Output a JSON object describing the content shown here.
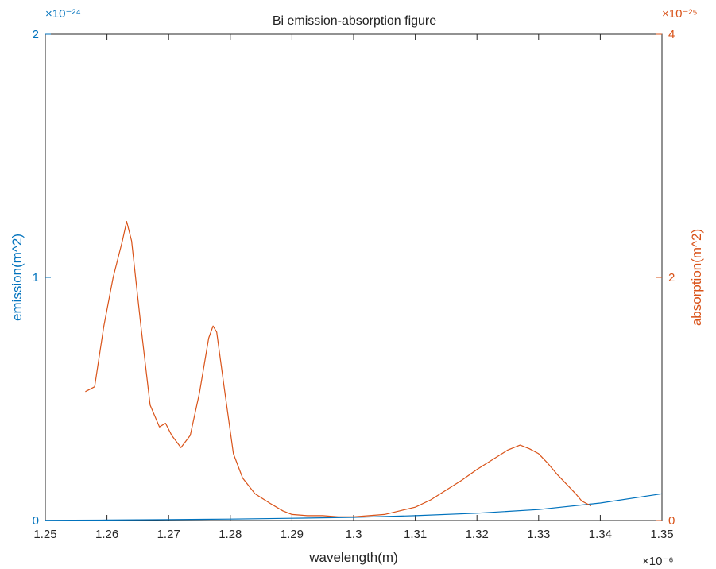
{
  "chart_data": {
    "type": "line",
    "title": "Bi emission-absorption figure",
    "xlabel": "wavelength(m)",
    "ylabel_left": "emission(m^2)",
    "ylabel_right": "absorption(m^2)",
    "x_exponent": "×10⁻⁶",
    "y_left_exponent": "×10⁻²⁴",
    "y_right_exponent": "×10⁻²⁵",
    "xlim": [
      1.25,
      1.35
    ],
    "ylim_left": [
      0,
      2
    ],
    "ylim_right": [
      0,
      4
    ],
    "x_ticks": [
      "1.25",
      "1.26",
      "1.27",
      "1.28",
      "1.29",
      "1.3",
      "1.31",
      "1.32",
      "1.33",
      "1.34",
      "1.35"
    ],
    "y_left_ticks": [
      "0",
      "1",
      "2"
    ],
    "y_right_ticks": [
      "0",
      "2",
      "4"
    ],
    "grid": false,
    "colors": {
      "emission": "#0072bd",
      "absorption": "#d95319"
    },
    "series": [
      {
        "axis": "left",
        "x": [
          1.25,
          1.26,
          1.27,
          1.28,
          1.29,
          1.3,
          1.31,
          1.32,
          1.33,
          1.34,
          1.35
        ],
        "y": [
          0.001,
          0.002,
          0.004,
          0.006,
          0.009,
          0.013,
          0.02,
          0.03,
          0.045,
          0.072,
          0.11
        ]
      },
      {
        "axis": "right",
        "x": [
          1.2565,
          1.258,
          1.2595,
          1.261,
          1.2625,
          1.2632,
          1.264,
          1.2655,
          1.267,
          1.2685,
          1.2695,
          1.2705,
          1.272,
          1.2735,
          1.275,
          1.2765,
          1.2772,
          1.2778,
          1.279,
          1.2805,
          1.282,
          1.284,
          1.2865,
          1.2885,
          1.29,
          1.2925,
          1.295,
          1.2975,
          1.3,
          1.3025,
          1.305,
          1.3075,
          1.31,
          1.3125,
          1.315,
          1.3175,
          1.32,
          1.3225,
          1.325,
          1.327,
          1.3285,
          1.33,
          1.3315,
          1.333,
          1.3345,
          1.336,
          1.337,
          1.3385
        ],
        "y": [
          1.06,
          1.1,
          1.6,
          2.0,
          2.3,
          2.46,
          2.3,
          1.6,
          0.95,
          0.77,
          0.8,
          0.7,
          0.6,
          0.7,
          1.05,
          1.5,
          1.6,
          1.55,
          1.1,
          0.55,
          0.35,
          0.22,
          0.14,
          0.08,
          0.05,
          0.04,
          0.04,
          0.03,
          0.03,
          0.04,
          0.05,
          0.08,
          0.11,
          0.17,
          0.25,
          0.33,
          0.42,
          0.5,
          0.58,
          0.62,
          0.59,
          0.55,
          0.47,
          0.38,
          0.3,
          0.22,
          0.16,
          0.12
        ]
      }
    ]
  }
}
